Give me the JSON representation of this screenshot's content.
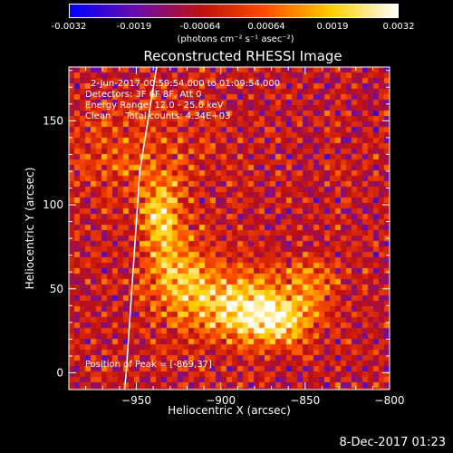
{
  "colorbar": {
    "ticks": [
      "-0.0032",
      "-0.0019",
      "-0.00064",
      "0.00064",
      "0.0019",
      "0.0032"
    ],
    "unit": "(photons cm⁻² s⁻¹ asec⁻²)",
    "colors": [
      "#0000ff",
      "#6a0dad",
      "#c01010",
      "#ff5000",
      "#ffd000",
      "#ffffff"
    ]
  },
  "chart_data": {
    "type": "heatmap",
    "title": "Reconstructed RHESSI Image",
    "xlabel": "Heliocentric X (arcsec)",
    "ylabel": "Heliocentric Y (arcsec)",
    "xlim": [
      -990,
      -800
    ],
    "ylim": [
      -10,
      182
    ],
    "x_ticks": [
      -950,
      -900,
      -850,
      -800
    ],
    "y_ticks": [
      0,
      50,
      100,
      150
    ],
    "x_tick_labels": [
      "−950",
      "−900",
      "−850",
      "−800"
    ],
    "y_tick_labels": [
      "0",
      "50",
      "100",
      "150"
    ],
    "value_range": [
      -0.0032,
      0.0032
    ],
    "peak_position": [
      -869,
      37
    ],
    "hot_regions": [
      {
        "x": -935,
        "y": 95,
        "sx": 8,
        "sy": 14,
        "amp": 0.0026
      },
      {
        "x": -925,
        "y": 60,
        "sx": 14,
        "sy": 16,
        "amp": 0.0022
      },
      {
        "x": -890,
        "y": 40,
        "sx": 22,
        "sy": 14,
        "amp": 0.003
      },
      {
        "x": -865,
        "y": 30,
        "sx": 14,
        "sy": 10,
        "amp": 0.0024
      },
      {
        "x": -845,
        "y": 55,
        "sx": 10,
        "sy": 10,
        "amp": 0.0016
      },
      {
        "x": -950,
        "y": 130,
        "sx": 30,
        "sy": 20,
        "amp": 0.001
      }
    ],
    "limb": [
      [
        -938,
        182
      ],
      [
        -948,
        120
      ],
      [
        -952,
        60
      ],
      [
        -956,
        0
      ],
      [
        -957,
        -10
      ]
    ]
  },
  "annotations": {
    "time_range": "2-Jun-2017 00:59:54.000 to 01:09:54.000",
    "detectors": "Detectors: 3F 6F 8F, Att 0",
    "energy_range": "Energy Range: 12.0 - 25.0 keV",
    "clean_counts": "Clean     Total counts: 4.34E+03",
    "peak_label": "Position of Peak = [-869,37]"
  },
  "footer": {
    "timestamp": "8-Dec-2017 01:23"
  }
}
